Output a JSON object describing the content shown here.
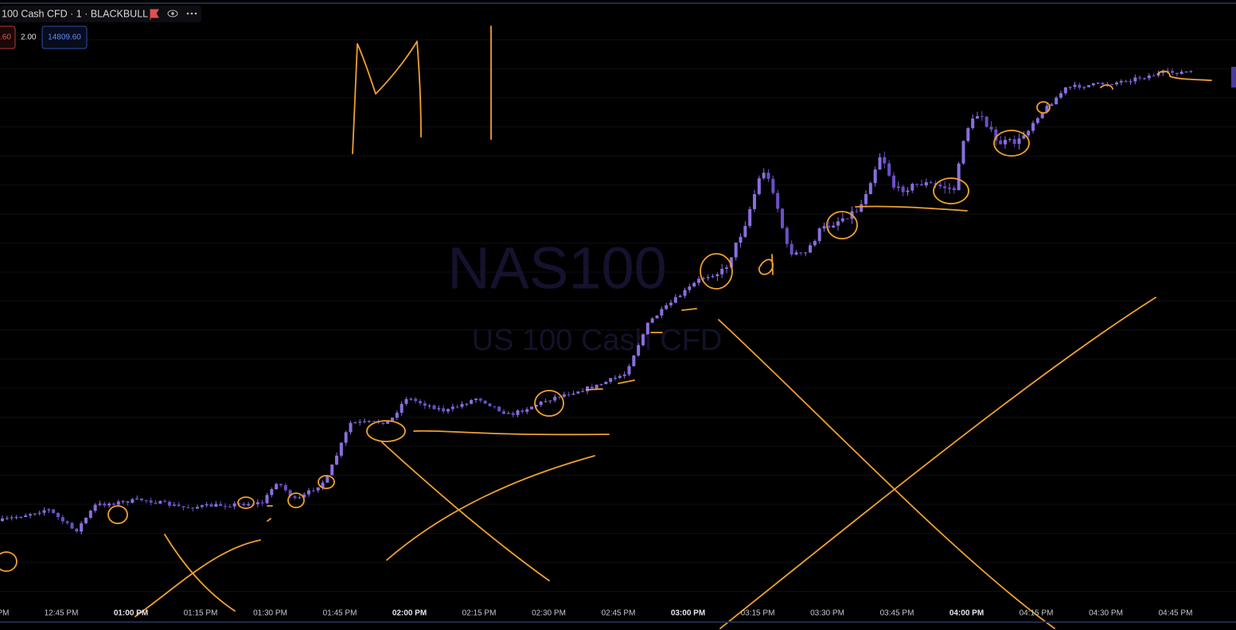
{
  "header": {
    "symbol": "100 Cash CFD · 1 · BLACKBULL",
    "sell_price": ".60",
    "spread": "2.00",
    "buy_price": "14809.60"
  },
  "watermark": {
    "ticker": "NAS100",
    "description": "US 100 Cash CFD"
  },
  "time_axis": {
    "labels": [
      "PM",
      "12:45 PM",
      "01:00 PM",
      "01:15 PM",
      "01:30 PM",
      "01:45 PM",
      "02:00 PM",
      "02:15 PM",
      "02:30 PM",
      "02:45 PM",
      "03:00 PM",
      "03:15 PM",
      "03:30 PM",
      "03:45 PM",
      "04:00 PM",
      "04:15 PM",
      "04:30 PM",
      "04:45 PM"
    ]
  }
}
